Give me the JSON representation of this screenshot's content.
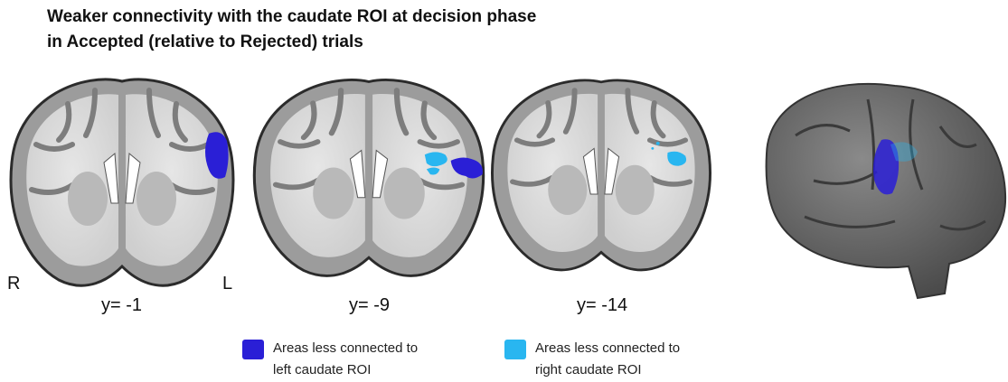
{
  "title": [
    "Weaker connectivity with the caudate ROI at decision phase",
    "in Accepted (relative to Rejected) trials"
  ],
  "orientation": {
    "right": "R",
    "left": "L"
  },
  "slices": [
    {
      "label": "y= -1"
    },
    {
      "label": "y= -9"
    },
    {
      "label": "y= -14"
    }
  ],
  "legend": [
    {
      "lines": [
        "Areas less connected to",
        "left caudate ROI"
      ],
      "color": "#2a1fd6"
    },
    {
      "lines": [
        "Areas less connected to",
        "right caudate ROI"
      ],
      "color": "#29b6f0"
    }
  ]
}
